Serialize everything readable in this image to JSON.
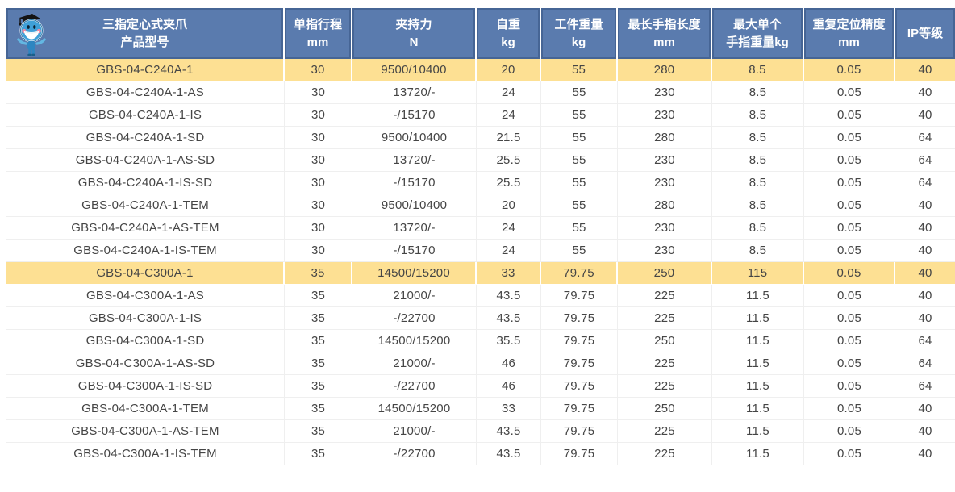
{
  "colors": {
    "header_bg": "#5a7bae",
    "header_border": "#3d5f92",
    "header_text": "#ffffff",
    "highlight_bg": "#fde093",
    "grid_line": "#efefef",
    "body_text": "#454545",
    "mascot_blue": "#3fa0d8"
  },
  "table": {
    "columns": [
      {
        "key": "model",
        "label": "三指定心式夹爪\n产品型号"
      },
      {
        "key": "stroke",
        "label": "单指行程\nmm"
      },
      {
        "key": "force",
        "label": "夹持力\nN"
      },
      {
        "key": "self_weight",
        "label": "自重\nkg"
      },
      {
        "key": "workpiece_weight",
        "label": "工件重量\nkg"
      },
      {
        "key": "finger_length",
        "label": "最长手指长度\nmm"
      },
      {
        "key": "finger_weight",
        "label": "最大单个\n手指重量kg"
      },
      {
        "key": "precision",
        "label": "重复定位精度\nmm"
      },
      {
        "key": "ip",
        "label": "IP等级"
      }
    ],
    "rows": [
      {
        "model": "GBS-04-C240A-1",
        "stroke": "30",
        "force": "9500/10400",
        "self_weight": "20",
        "workpiece_weight": "55",
        "finger_length": "280",
        "finger_weight": "8.5",
        "precision": "0.05",
        "ip": "40",
        "highlight": true
      },
      {
        "model": "GBS-04-C240A-1-AS",
        "stroke": "30",
        "force": "13720/-",
        "self_weight": "24",
        "workpiece_weight": "55",
        "finger_length": "230",
        "finger_weight": "8.5",
        "precision": "0.05",
        "ip": "40",
        "highlight": false
      },
      {
        "model": "GBS-04-C240A-1-IS",
        "stroke": "30",
        "force": "-/15170",
        "self_weight": "24",
        "workpiece_weight": "55",
        "finger_length": "230",
        "finger_weight": "8.5",
        "precision": "0.05",
        "ip": "40",
        "highlight": false
      },
      {
        "model": "GBS-04-C240A-1-SD",
        "stroke": "30",
        "force": "9500/10400",
        "self_weight": "21.5",
        "workpiece_weight": "55",
        "finger_length": "280",
        "finger_weight": "8.5",
        "precision": "0.05",
        "ip": "64",
        "highlight": false
      },
      {
        "model": "GBS-04-C240A-1-AS-SD",
        "stroke": "30",
        "force": "13720/-",
        "self_weight": "25.5",
        "workpiece_weight": "55",
        "finger_length": "230",
        "finger_weight": "8.5",
        "precision": "0.05",
        "ip": "64",
        "highlight": false
      },
      {
        "model": "GBS-04-C240A-1-IS-SD",
        "stroke": "30",
        "force": "-/15170",
        "self_weight": "25.5",
        "workpiece_weight": "55",
        "finger_length": "230",
        "finger_weight": "8.5",
        "precision": "0.05",
        "ip": "64",
        "highlight": false
      },
      {
        "model": "GBS-04-C240A-1-TEM",
        "stroke": "30",
        "force": "9500/10400",
        "self_weight": "20",
        "workpiece_weight": "55",
        "finger_length": "280",
        "finger_weight": "8.5",
        "precision": "0.05",
        "ip": "40",
        "highlight": false
      },
      {
        "model": "GBS-04-C240A-1-AS-TEM",
        "stroke": "30",
        "force": "13720/-",
        "self_weight": "24",
        "workpiece_weight": "55",
        "finger_length": "230",
        "finger_weight": "8.5",
        "precision": "0.05",
        "ip": "40",
        "highlight": false
      },
      {
        "model": "GBS-04-C240A-1-IS-TEM",
        "stroke": "30",
        "force": "-/15170",
        "self_weight": "24",
        "workpiece_weight": "55",
        "finger_length": "230",
        "finger_weight": "8.5",
        "precision": "0.05",
        "ip": "40",
        "highlight": false
      },
      {
        "model": "GBS-04-C300A-1",
        "stroke": "35",
        "force": "14500/15200",
        "self_weight": "33",
        "workpiece_weight": "79.75",
        "finger_length": "250",
        "finger_weight": "115",
        "precision": "0.05",
        "ip": "40",
        "highlight": true
      },
      {
        "model": "GBS-04-C300A-1-AS",
        "stroke": "35",
        "force": "21000/-",
        "self_weight": "43.5",
        "workpiece_weight": "79.75",
        "finger_length": "225",
        "finger_weight": "11.5",
        "precision": "0.05",
        "ip": "40",
        "highlight": false
      },
      {
        "model": "GBS-04-C300A-1-IS",
        "stroke": "35",
        "force": "-/22700",
        "self_weight": "43.5",
        "workpiece_weight": "79.75",
        "finger_length": "225",
        "finger_weight": "11.5",
        "precision": "0.05",
        "ip": "40",
        "highlight": false
      },
      {
        "model": "GBS-04-C300A-1-SD",
        "stroke": "35",
        "force": "14500/15200",
        "self_weight": "35.5",
        "workpiece_weight": "79.75",
        "finger_length": "250",
        "finger_weight": "11.5",
        "precision": "0.05",
        "ip": "64",
        "highlight": false
      },
      {
        "model": "GBS-04-C300A-1-AS-SD",
        "stroke": "35",
        "force": "21000/-",
        "self_weight": "46",
        "workpiece_weight": "79.75",
        "finger_length": "225",
        "finger_weight": "11.5",
        "precision": "0.05",
        "ip": "64",
        "highlight": false
      },
      {
        "model": "GBS-04-C300A-1-IS-SD",
        "stroke": "35",
        "force": "-/22700",
        "self_weight": "46",
        "workpiece_weight": "79.75",
        "finger_length": "225",
        "finger_weight": "11.5",
        "precision": "0.05",
        "ip": "64",
        "highlight": false
      },
      {
        "model": "GBS-04-C300A-1-TEM",
        "stroke": "35",
        "force": "14500/15200",
        "self_weight": "33",
        "workpiece_weight": "79.75",
        "finger_length": "250",
        "finger_weight": "11.5",
        "precision": "0.05",
        "ip": "40",
        "highlight": false
      },
      {
        "model": "GBS-04-C300A-1-AS-TEM",
        "stroke": "35",
        "force": "21000/-",
        "self_weight": "43.5",
        "workpiece_weight": "79.75",
        "finger_length": "225",
        "finger_weight": "11.5",
        "precision": "0.05",
        "ip": "40",
        "highlight": false
      },
      {
        "model": "GBS-04-C300A-1-IS-TEM",
        "stroke": "35",
        "force": "-/22700",
        "self_weight": "43.5",
        "workpiece_weight": "79.75",
        "finger_length": "225",
        "finger_weight": "11.5",
        "precision": "0.05",
        "ip": "40",
        "highlight": false
      }
    ]
  }
}
